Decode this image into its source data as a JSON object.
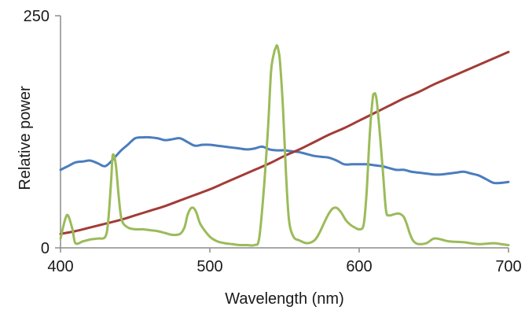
{
  "chart_data": {
    "type": "line",
    "title": "",
    "xlabel": "Wavelength (nm)",
    "ylabel": "Relative power",
    "xlim": [
      400,
      700
    ],
    "ylim": [
      0,
      250
    ],
    "x_ticks": [
      "400",
      "500",
      "600",
      "700"
    ],
    "y_ticks": [
      "0",
      "250"
    ],
    "grid": false,
    "legend": "none",
    "series": [
      {
        "color": "#4a7dbd",
        "x": [
          400,
          405,
          410,
          415,
          420,
          425,
          430,
          435,
          440,
          445,
          450,
          455,
          460,
          465,
          470,
          475,
          480,
          485,
          490,
          495,
          500,
          505,
          510,
          515,
          520,
          525,
          530,
          535,
          540,
          545,
          550,
          555,
          560,
          565,
          570,
          575,
          580,
          585,
          590,
          595,
          600,
          605,
          610,
          615,
          620,
          625,
          630,
          635,
          640,
          645,
          650,
          655,
          660,
          665,
          670,
          675,
          680,
          685,
          690,
          695,
          700
        ],
        "values": [
          84,
          88,
          92,
          93,
          94,
          91,
          88,
          95,
          104,
          111,
          118,
          119,
          119,
          118,
          116,
          117,
          118,
          114,
          110,
          111,
          111,
          110,
          109,
          108,
          107,
          106,
          107,
          109,
          106,
          105,
          105,
          104,
          103,
          101,
          99,
          98,
          97,
          94,
          90,
          90,
          90,
          90,
          89,
          88,
          86,
          84,
          84,
          82,
          81,
          80,
          79,
          79,
          80,
          81,
          82,
          80,
          78,
          74,
          70,
          70,
          71
        ]
      },
      {
        "color": "#a33b36",
        "x": [
          400,
          410,
          420,
          430,
          440,
          450,
          460,
          470,
          480,
          490,
          500,
          510,
          520,
          530,
          540,
          550,
          560,
          570,
          580,
          590,
          600,
          610,
          620,
          630,
          640,
          650,
          660,
          670,
          680,
          690,
          700
        ],
        "values": [
          15,
          18,
          22,
          26,
          30,
          35,
          40,
          45,
          51,
          57,
          63,
          70,
          77,
          84,
          91,
          99,
          106,
          114,
          122,
          129,
          137,
          145,
          153,
          161,
          168,
          176,
          183,
          190,
          197,
          204,
          211
        ]
      },
      {
        "color": "#9bbb59",
        "x": [
          400,
          403,
          405,
          408,
          410,
          415,
          420,
          425,
          430,
          432,
          434,
          435,
          437,
          439,
          441,
          445,
          450,
          455,
          460,
          465,
          470,
          475,
          480,
          483,
          485,
          487,
          489,
          491,
          493,
          495,
          500,
          505,
          510,
          515,
          520,
          525,
          530,
          533,
          536,
          539,
          541,
          543,
          544,
          545,
          546,
          547,
          549,
          551,
          553,
          556,
          560,
          565,
          570,
          573,
          576,
          579,
          582,
          585,
          588,
          591,
          594,
          597,
          600,
          603,
          605,
          607,
          609,
          610,
          611,
          612,
          614,
          616,
          618,
          620,
          623,
          626,
          628,
          630,
          632,
          634,
          636,
          638,
          640,
          645,
          650,
          655,
          660,
          670,
          680,
          690,
          695,
          700
        ],
        "values": [
          10,
          30,
          35,
          20,
          5,
          7,
          9,
          10,
          12,
          30,
          75,
          100,
          90,
          55,
          30,
          22,
          20,
          20,
          19,
          18,
          16,
          14,
          15,
          22,
          35,
          42,
          43,
          38,
          28,
          22,
          12,
          7,
          5,
          4,
          3,
          3,
          3,
          10,
          60,
          130,
          190,
          210,
          215,
          218,
          212,
          200,
          150,
          80,
          30,
          12,
          8,
          5,
          8,
          15,
          25,
          35,
          42,
          43,
          38,
          30,
          25,
          22,
          20,
          25,
          60,
          120,
          160,
          166,
          165,
          155,
          120,
          80,
          40,
          35,
          36,
          37,
          36,
          33,
          25,
          15,
          8,
          5,
          4,
          5,
          10,
          9,
          7,
          6,
          4,
          5,
          4,
          3
        ]
      }
    ]
  }
}
